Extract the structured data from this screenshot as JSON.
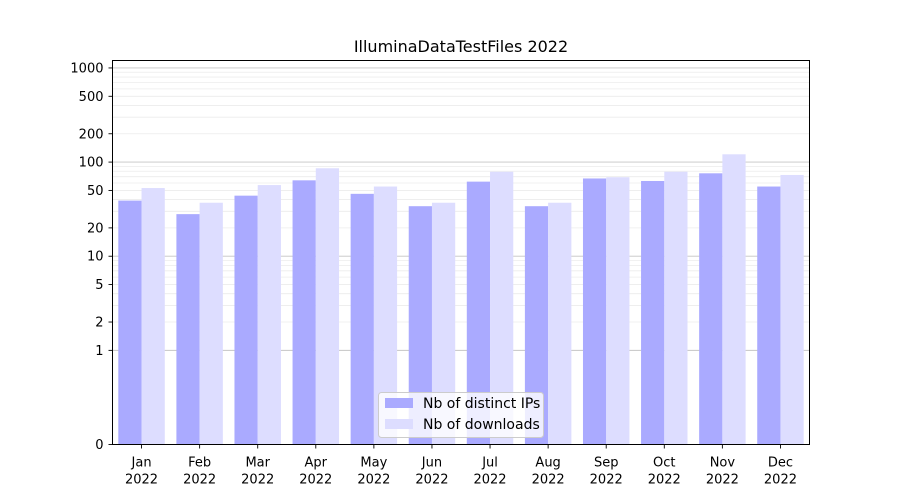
{
  "chart_data": {
    "type": "bar",
    "title": "IlluminaDataTestFiles 2022",
    "xlabel": "",
    "ylabel": "",
    "y_scale": "symlog",
    "ylim": [
      0,
      1200
    ],
    "grid": "horizontal",
    "categories": [
      {
        "month": "Jan",
        "year": "2022"
      },
      {
        "month": "Feb",
        "year": "2022"
      },
      {
        "month": "Mar",
        "year": "2022"
      },
      {
        "month": "Apr",
        "year": "2022"
      },
      {
        "month": "May",
        "year": "2022"
      },
      {
        "month": "Jun",
        "year": "2022"
      },
      {
        "month": "Jul",
        "year": "2022"
      },
      {
        "month": "Aug",
        "year": "2022"
      },
      {
        "month": "Sep",
        "year": "2022"
      },
      {
        "month": "Oct",
        "year": "2022"
      },
      {
        "month": "Nov",
        "year": "2022"
      },
      {
        "month": "Dec",
        "year": "2022"
      }
    ],
    "y_ticks": [
      0,
      1,
      2,
      5,
      10,
      20,
      50,
      100,
      200,
      500,
      1000
    ],
    "y_tick_labels": [
      "0",
      "1",
      "2",
      "5",
      "10",
      "20",
      "50",
      "100",
      "200",
      "500",
      "1000"
    ],
    "series": [
      {
        "name": "Nb of distinct IPs",
        "color": "#aaaaff",
        "values": [
          39,
          28,
          44,
          64,
          46,
          34,
          62,
          34,
          67,
          63,
          76,
          55
        ]
      },
      {
        "name": "Nb of downloads",
        "color": "#ddddff",
        "values": [
          53,
          37,
          57,
          86,
          55,
          37,
          79,
          37,
          69,
          79,
          121,
          73
        ]
      }
    ],
    "legend_position": "bottom-center"
  }
}
